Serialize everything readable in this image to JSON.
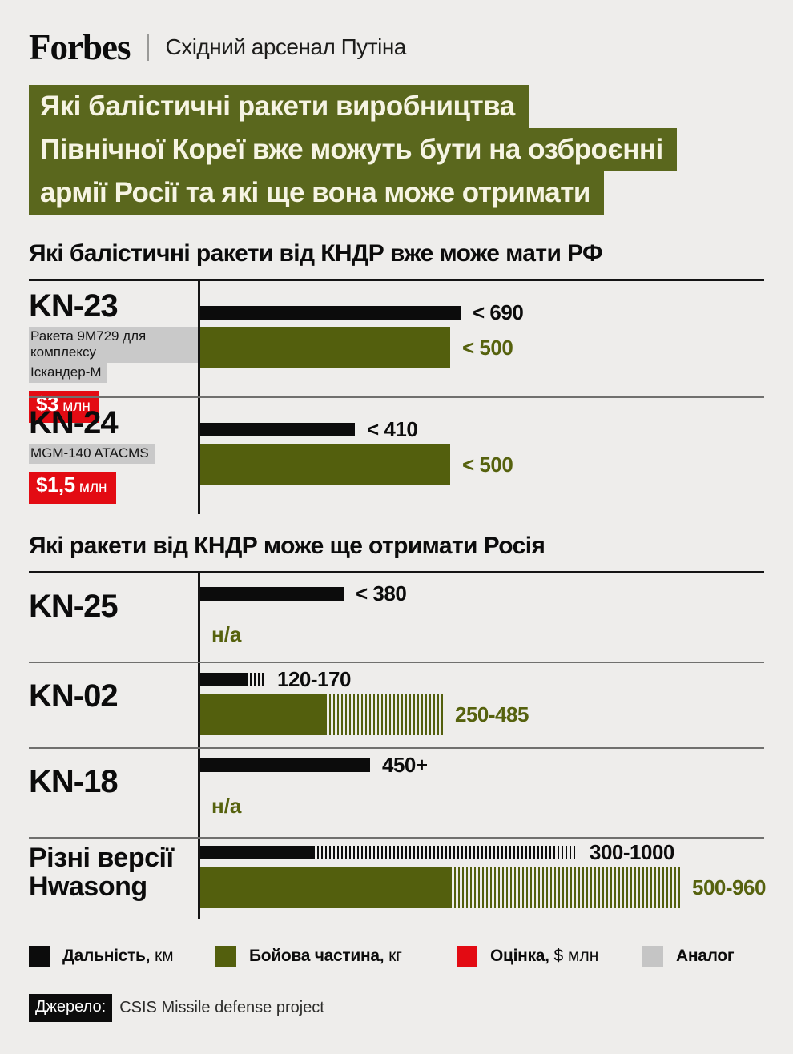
{
  "header": {
    "logo": "Forbes",
    "tagline": "Східний арсенал Путіна"
  },
  "title": {
    "lines": [
      "Які балістичні ракети виробництва",
      "Північної Кореї вже можуть бути на озброєнні",
      "армії Росії та які ще вона може отримати"
    ]
  },
  "colors": {
    "background": "#eeedeb",
    "title_background": "#5a671d",
    "title_text": "#f6f4e3",
    "range_black": "#0c0c0c",
    "warhead_olive": "#535f0d",
    "estimate_red": "#e30b13",
    "analog_gray": "#c9c9c9"
  },
  "chart_data": [
    {
      "type": "bar",
      "title": "Які балістичні ракети від КНДР вже може мати РФ",
      "units": {
        "range": "км",
        "warhead": "кг",
        "price": "$ млн"
      },
      "rows": [
        {
          "name": "KN-23",
          "analog_lines": [
            "Ракета 9М729 для комплексу",
            "Іскандер-М"
          ],
          "price": {
            "amount": "$3",
            "unit": "млн"
          },
          "range_km": {
            "label": "< 690",
            "value": 690
          },
          "warhead_kg": {
            "label": "< 500",
            "value": 500
          }
        },
        {
          "name": "KN-24",
          "analog_lines": [
            "MGM-140 ATACMS"
          ],
          "price": {
            "amount": "$1,5",
            "unit": "млн"
          },
          "range_km": {
            "label": "< 410",
            "value": 410
          },
          "warhead_kg": {
            "label": "< 500",
            "value": 500
          }
        }
      ]
    },
    {
      "type": "bar",
      "title": "Які ракети від КНДР може ще отримати Росія",
      "units": {
        "range": "км",
        "warhead": "кг"
      },
      "rows": [
        {
          "name": "KN-25",
          "range_km": {
            "label": "< 380",
            "value": 380
          },
          "warhead_kg": {
            "label": "н/а"
          }
        },
        {
          "name": "KN-02",
          "range_km": {
            "label": "120-170",
            "min": 120,
            "max": 170
          },
          "warhead_kg": {
            "label": "250-485",
            "min": 250,
            "max": 485
          }
        },
        {
          "name": "KN-18",
          "range_km": {
            "label": "450+",
            "value": 450
          },
          "warhead_kg": {
            "label": "н/а"
          }
        },
        {
          "name": "Різні версії Hwasong",
          "name_lines": [
            "Різні версії",
            "Hwasong"
          ],
          "range_km": {
            "label": "300-1000",
            "min": 300,
            "max": 1000
          },
          "warhead_kg": {
            "label": "500-960",
            "min": 500,
            "max": 960
          }
        }
      ]
    }
  ],
  "legend": {
    "items": [
      {
        "name": "range",
        "bold": "Дальність,",
        "unit": " км",
        "color": "#0c0c0c"
      },
      {
        "name": "warhead",
        "bold": "Бойова частина,",
        "unit": " кг",
        "color": "#535f0d"
      },
      {
        "name": "estimate",
        "bold": "Оцінка,",
        "unit": " $ млн",
        "color": "#e30b13"
      },
      {
        "name": "analog",
        "bold": "Аналог",
        "unit": "",
        "color": "#c5c5c5"
      }
    ]
  },
  "source": {
    "label": "Джерело:",
    "text": "CSIS Missile defense project"
  }
}
